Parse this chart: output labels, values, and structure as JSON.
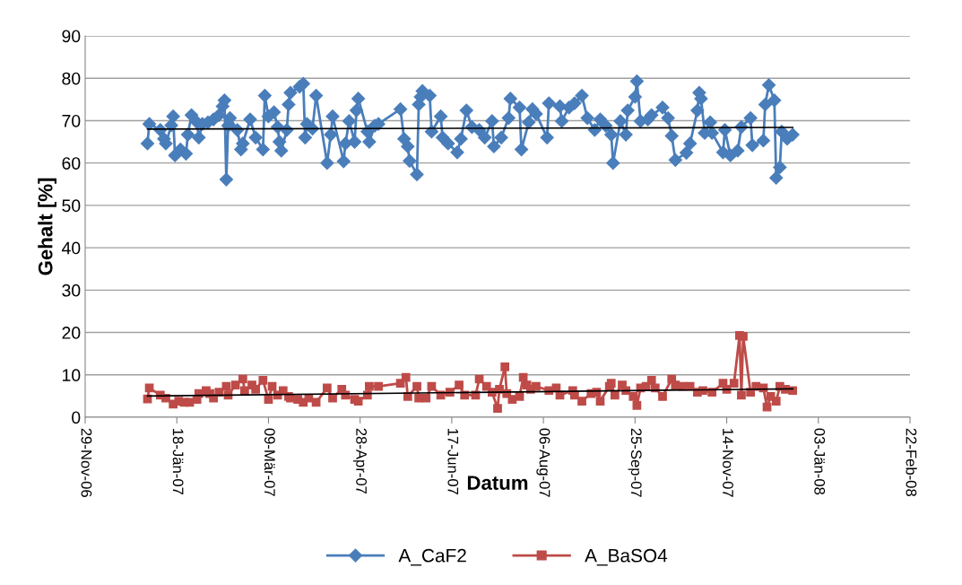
{
  "chart_data": {
    "type": "line",
    "xlabel": "Datum",
    "ylabel": "Gehalt [%]",
    "xlim": [
      "2006-11-29",
      "2008-02-22"
    ],
    "xticks": [
      {
        "value": "2006-11-29",
        "label": "29-Nov-06"
      },
      {
        "value": "2007-01-18",
        "label": "18-Jän-07"
      },
      {
        "value": "2007-03-09",
        "label": "09-Mär-07"
      },
      {
        "value": "2007-04-28",
        "label": "28-Apr-07"
      },
      {
        "value": "2007-06-17",
        "label": "17-Jun-07"
      },
      {
        "value": "2007-08-06",
        "label": "06-Aug-07"
      },
      {
        "value": "2007-09-25",
        "label": "25-Sep-07"
      },
      {
        "value": "2007-11-14",
        "label": "14-Nov-07"
      },
      {
        "value": "2008-01-03",
        "label": "03-Jän-08"
      },
      {
        "value": "2008-02-22",
        "label": "22-Feb-08"
      }
    ],
    "ylim": [
      0,
      90
    ],
    "yticks": [
      0,
      10,
      20,
      30,
      40,
      50,
      60,
      70,
      80,
      90
    ],
    "grid": "y",
    "legend": "bottom",
    "series": [
      {
        "name": "A_CaF2",
        "color": "#4a7ebb",
        "marker": "diamond",
        "x": [
          "2007-01-02",
          "2007-01-03",
          "2007-01-09",
          "2007-01-11",
          "2007-01-12",
          "2007-01-15",
          "2007-01-16",
          "2007-01-17",
          "2007-01-20",
          "2007-01-23",
          "2007-01-24",
          "2007-01-26",
          "2007-01-29",
          "2007-01-30",
          "2007-02-01",
          "2007-02-04",
          "2007-02-07",
          "2007-02-10",
          "2007-02-12",
          "2007-02-13",
          "2007-02-14",
          "2007-02-15",
          "2007-02-16",
          "2007-02-20",
          "2007-02-22",
          "2007-02-23",
          "2007-02-27",
          "2007-03-02",
          "2007-03-06",
          "2007-03-07",
          "2007-03-09",
          "2007-03-12",
          "2007-03-14",
          "2007-03-15",
          "2007-03-16",
          "2007-03-19",
          "2007-03-20",
          "2007-03-21",
          "2007-03-26",
          "2007-03-28",
          "2007-03-29",
          "2007-03-30",
          "2007-04-02",
          "2007-04-04",
          "2007-04-10",
          "2007-04-12",
          "2007-04-13",
          "2007-04-19",
          "2007-04-20",
          "2007-04-22",
          "2007-04-25",
          "2007-04-26",
          "2007-04-27",
          "2007-05-02",
          "2007-05-03",
          "2007-05-06",
          "2007-05-08",
          "2007-05-20",
          "2007-05-22",
          "2007-05-24",
          "2007-05-25",
          "2007-05-29",
          "2007-05-30",
          "2007-05-31",
          "2007-06-01",
          "2007-06-05",
          "2007-06-06",
          "2007-06-11",
          "2007-06-12",
          "2007-06-15",
          "2007-06-20",
          "2007-06-22",
          "2007-06-25",
          "2007-06-28",
          "2007-07-02",
          "2007-07-05",
          "2007-07-09",
          "2007-07-10",
          "2007-07-14",
          "2007-07-18",
          "2007-07-19",
          "2007-07-24",
          "2007-07-25",
          "2007-07-29",
          "2007-07-31",
          "2007-08-02",
          "2007-08-08",
          "2007-08-09",
          "2007-08-15",
          "2007-08-16",
          "2007-08-20",
          "2007-08-23",
          "2007-08-27",
          "2007-08-30",
          "2007-09-03",
          "2007-09-06",
          "2007-09-09",
          "2007-09-12",
          "2007-09-13",
          "2007-09-17",
          "2007-09-20",
          "2007-09-21",
          "2007-09-25",
          "2007-09-26",
          "2007-09-28",
          "2007-10-02",
          "2007-10-04",
          "2007-10-10",
          "2007-10-13",
          "2007-10-15",
          "2007-10-17",
          "2007-10-23",
          "2007-10-25",
          "2007-10-29",
          "2007-10-30",
          "2007-10-31",
          "2007-11-02",
          "2007-11-05",
          "2007-11-06",
          "2007-11-12",
          "2007-11-13",
          "2007-11-16",
          "2007-11-20",
          "2007-11-22",
          "2007-11-27",
          "2007-11-28",
          "2007-12-04",
          "2007-12-05",
          "2007-12-07",
          "2007-12-10",
          "2007-12-11",
          "2007-12-13",
          "2007-12-14",
          "2007-12-17",
          "2007-12-20"
        ],
        "values": [
          64.6,
          69.2,
          67.8,
          65.7,
          64.6,
          68.9,
          71.0,
          61.8,
          63.2,
          62.2,
          66.7,
          71.3,
          69.6,
          66.0,
          69.2,
          69.6,
          70.3,
          71.3,
          73.4,
          74.8,
          56.1,
          68.8,
          70.6,
          67.8,
          63.2,
          64.6,
          70.3,
          66.0,
          63.2,
          75.9,
          71.0,
          72.0,
          68.5,
          65.0,
          62.9,
          67.8,
          73.8,
          76.6,
          78.0,
          78.7,
          66.0,
          69.2,
          68.1,
          75.9,
          60.0,
          66.7,
          71.0,
          60.4,
          64.6,
          69.9,
          65.0,
          72.4,
          75.2,
          67.4,
          65.0,
          68.8,
          69.2,
          72.7,
          65.7,
          63.9,
          60.5,
          57.3,
          73.8,
          75.6,
          77.0,
          75.9,
          67.4,
          71.0,
          66.0,
          64.6,
          62.5,
          65.7,
          72.4,
          68.5,
          67.8,
          66.0,
          69.9,
          63.9,
          66.0,
          70.6,
          75.2,
          73.1,
          63.2,
          69.6,
          72.7,
          71.6,
          66.0,
          74.1,
          73.4,
          69.9,
          73.1,
          74.1,
          75.9,
          70.6,
          67.8,
          70.3,
          68.8,
          66.7,
          60.0,
          69.9,
          66.7,
          72.4,
          75.6,
          79.3,
          69.9,
          70.3,
          71.3,
          73.1,
          70.6,
          66.4,
          60.7,
          62.4,
          64.6,
          72.4,
          76.6,
          75.2,
          67.1,
          69.6,
          67.1,
          62.5,
          67.8,
          61.8,
          62.9,
          68.5,
          70.6,
          64.2,
          65.3,
          73.8,
          78.4,
          74.8,
          56.5,
          59.0,
          67.4,
          65.7,
          66.7
        ]
      },
      {
        "name": "A_BaSO4",
        "color": "#be4b48",
        "marker": "square",
        "x": [
          "2007-01-02",
          "2007-01-03",
          "2007-01-09",
          "2007-01-12",
          "2007-01-16",
          "2007-01-19",
          "2007-01-22",
          "2007-01-25",
          "2007-01-29",
          "2007-01-30",
          "2007-02-03",
          "2007-02-05",
          "2007-02-07",
          "2007-02-10",
          "2007-02-14",
          "2007-02-15",
          "2007-02-19",
          "2007-02-23",
          "2007-02-24",
          "2007-02-28",
          "2007-03-02",
          "2007-03-06",
          "2007-03-09",
          "2007-03-11",
          "2007-03-14",
          "2007-03-17",
          "2007-03-20",
          "2007-03-21",
          "2007-03-25",
          "2007-03-28",
          "2007-03-31",
          "2007-04-04",
          "2007-04-10",
          "2007-04-13",
          "2007-04-18",
          "2007-04-20",
          "2007-04-25",
          "2007-04-27",
          "2007-05-02",
          "2007-05-03",
          "2007-05-08",
          "2007-05-20",
          "2007-05-23",
          "2007-05-24",
          "2007-05-29",
          "2007-05-30",
          "2007-06-03",
          "2007-06-06",
          "2007-06-11",
          "2007-06-16",
          "2007-06-21",
          "2007-06-24",
          "2007-06-30",
          "2007-07-02",
          "2007-07-06",
          "2007-07-09",
          "2007-07-12",
          "2007-07-13",
          "2007-07-16",
          "2007-07-17",
          "2007-07-20",
          "2007-07-24",
          "2007-07-26",
          "2007-07-28",
          "2007-07-30",
          "2007-08-02",
          "2007-08-09",
          "2007-08-13",
          "2007-08-15",
          "2007-08-22",
          "2007-08-23",
          "2007-08-27",
          "2007-09-01",
          "2007-09-04",
          "2007-09-06",
          "2007-09-11",
          "2007-09-12",
          "2007-09-14",
          "2007-09-18",
          "2007-09-20",
          "2007-09-24",
          "2007-09-26",
          "2007-09-28",
          "2007-10-01",
          "2007-10-04",
          "2007-10-06",
          "2007-10-10",
          "2007-10-15",
          "2007-10-17",
          "2007-10-21",
          "2007-10-25",
          "2007-10-29",
          "2007-11-01",
          "2007-11-06",
          "2007-11-12",
          "2007-11-14",
          "2007-11-18",
          "2007-11-21",
          "2007-11-22",
          "2007-11-23",
          "2007-11-27",
          "2007-11-30",
          "2007-12-04",
          "2007-12-06",
          "2007-12-08",
          "2007-12-11",
          "2007-12-13",
          "2007-12-16",
          "2007-12-20"
        ],
        "values": [
          4.3,
          6.9,
          5.2,
          4.5,
          3.1,
          3.8,
          3.5,
          3.5,
          4.2,
          5.6,
          6.3,
          5.6,
          4.5,
          5.9,
          7.3,
          5.2,
          7.6,
          9.0,
          6.3,
          7.6,
          6.6,
          8.7,
          4.2,
          7.3,
          5.2,
          6.3,
          4.9,
          4.5,
          4.2,
          3.5,
          4.5,
          3.5,
          6.9,
          4.5,
          6.6,
          5.2,
          4.2,
          3.8,
          5.2,
          7.3,
          7.3,
          8.0,
          9.4,
          4.9,
          7.3,
          4.5,
          4.5,
          7.3,
          5.2,
          5.9,
          7.6,
          5.2,
          5.2,
          9.0,
          7.3,
          5.9,
          2.1,
          6.6,
          11.9,
          5.6,
          4.2,
          4.9,
          9.4,
          7.6,
          6.6,
          7.3,
          6.3,
          6.9,
          5.2,
          6.3,
          5.2,
          3.8,
          5.6,
          5.9,
          3.8,
          7.3,
          8.0,
          5.2,
          7.6,
          6.3,
          4.9,
          2.8,
          6.9,
          7.3,
          8.7,
          6.9,
          4.9,
          9.0,
          7.6,
          7.3,
          7.3,
          5.9,
          6.3,
          5.9,
          8.0,
          6.6,
          8.0,
          19.3,
          5.2,
          19.1,
          5.9,
          7.3,
          6.9,
          2.4,
          4.9,
          3.8,
          7.3,
          6.6,
          6.3
        ]
      },
      {
        "type": "line",
        "color": "#000000",
        "marker": "none",
        "x": [
          "2007-01-02",
          "2007-12-20"
        ],
        "values": [
          68.0,
          68.4
        ]
      },
      {
        "type": "line",
        "color": "#000000",
        "marker": "none",
        "x": [
          "2007-01-02",
          "2007-12-20"
        ],
        "values": [
          5.0,
          6.7
        ]
      }
    ]
  }
}
